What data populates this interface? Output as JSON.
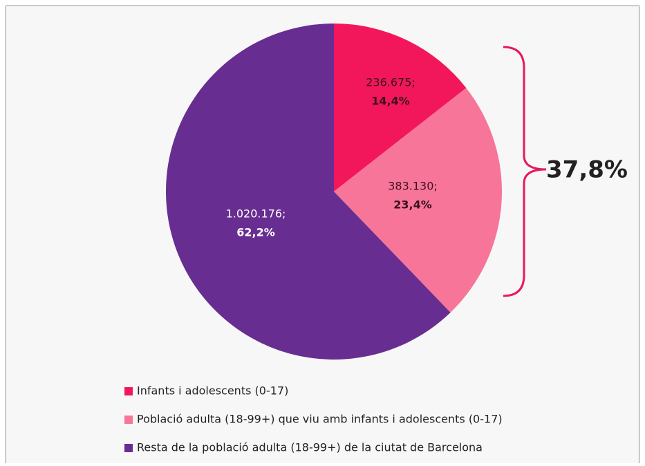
{
  "chart_data": {
    "type": "pie",
    "categories": [
      "Infants i adolescents (0-17)",
      "Població adulta (18-99+) que viu amb infants i adolescents (0-17)",
      "Resta de la població adulta (18-99+) de la ciutat de Barcelona"
    ],
    "values": [
      236675,
      383130,
      1020176
    ],
    "value_labels": [
      "236.675;",
      "383.130;",
      "1.020.176;"
    ],
    "percentages": [
      14.4,
      23.4,
      62.2
    ],
    "percentage_labels": [
      "14,4%",
      "23,4%",
      "62,2%"
    ],
    "colors": [
      "#f2175a",
      "#f77598",
      "#682d91"
    ],
    "annotation": "37,8%"
  }
}
